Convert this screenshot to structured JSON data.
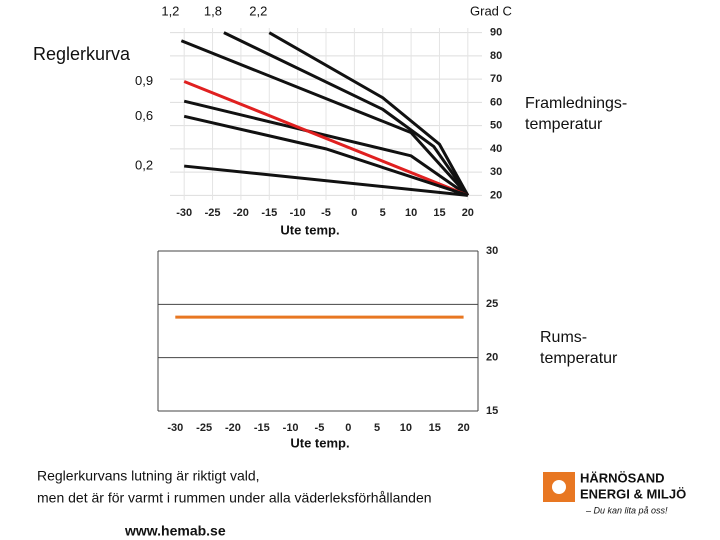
{
  "chart_data": [
    {
      "type": "line",
      "title": "Reglerkurva",
      "y_unit": "Grad C",
      "y_label": [
        "Framlednings-",
        "temperatur"
      ],
      "x_label": "Ute temp.",
      "xlim": [
        -32.5,
        22.5
      ],
      "xticks": [
        -30,
        -25,
        -20,
        -15,
        -10,
        -5,
        0,
        5,
        10,
        15,
        20
      ],
      "ylim": [
        18,
        92
      ],
      "yticks": [
        20,
        30,
        40,
        50,
        60,
        70,
        80,
        90
      ],
      "grid": true,
      "series": [
        {
          "name": "2,2",
          "color": "#111111",
          "x": [
            -15,
            5,
            15,
            20
          ],
          "values": [
            90,
            62,
            42,
            20
          ]
        },
        {
          "name": "1,8",
          "color": "#111111",
          "x": [
            -23,
            5,
            14,
            20
          ],
          "values": [
            90,
            57,
            41,
            20
          ]
        },
        {
          "name": "1,2",
          "color": "#111111",
          "x": [
            -30.5,
            10,
            20
          ],
          "values": [
            86.5,
            47,
            20
          ]
        },
        {
          "color": "#111111",
          "x": [
            -30,
            10,
            20
          ],
          "values": [
            60.5,
            37,
            20
          ]
        },
        {
          "name": "0,9",
          "color": "#e02020",
          "x": [
            -30,
            20
          ],
          "values": [
            69,
            20
          ]
        },
        {
          "name": "0,6",
          "color": "#111111",
          "x": [
            -30,
            -5,
            20
          ],
          "values": [
            54,
            40,
            20
          ]
        },
        {
          "name": "0,2",
          "color": "#111111",
          "x": [
            -30,
            20
          ],
          "values": [
            32.6,
            20
          ]
        }
      ]
    },
    {
      "type": "line",
      "y_label": [
        "Rums-",
        "temperatur"
      ],
      "x_label": "Ute temp.",
      "xlim": [
        -33,
        22.5
      ],
      "xticks": [
        -30,
        -25,
        -20,
        -15,
        -10,
        -5,
        0,
        5,
        10,
        15,
        20
      ],
      "ylim": [
        15,
        30
      ],
      "yticks": [
        15,
        20,
        25,
        30
      ],
      "grid": true,
      "series": [
        {
          "color": "#e87722",
          "x": [
            -30,
            20
          ],
          "values": [
            23.8,
            23.8
          ]
        }
      ]
    }
  ],
  "caption": [
    "Reglerkurvans lutning är riktigt vald,",
    "men det är för varmt i rummen under alla väderleksförhållanden"
  ],
  "website": "www.hemab.se",
  "logo": {
    "line1": "HÄRNÖSAND",
    "line2": "ENERGI & MILJÖ",
    "slogan": "– Du kan lita på oss!"
  }
}
